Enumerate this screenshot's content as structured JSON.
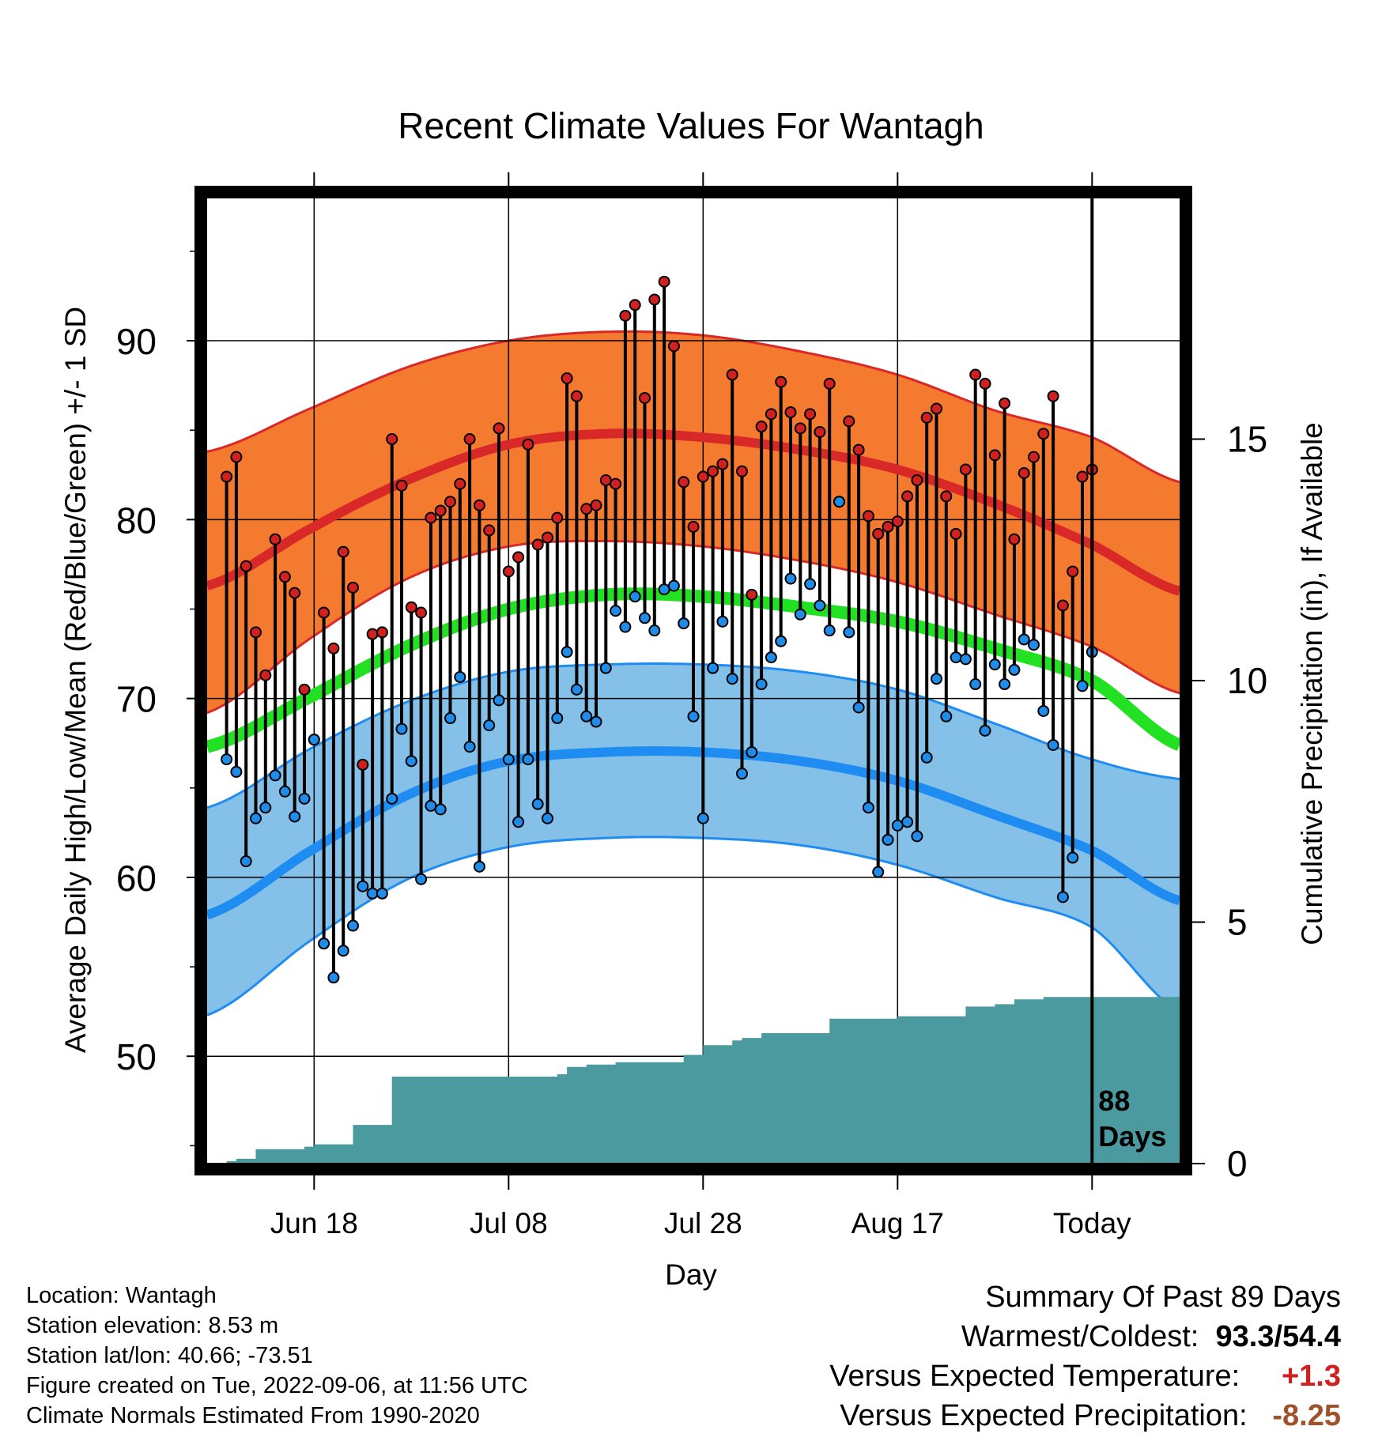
{
  "chart_data": {
    "type": "line",
    "title": "Recent Climate Values For Wantagh",
    "xlabel": "Day",
    "ylabel": "Average Daily High/Low/Mean (Red/Blue/Green) +/- 1 SD",
    "y2label": "Cumulative Precipitation (in), If Available",
    "ylim": [
      44,
      98
    ],
    "y_ticks": [
      50,
      60,
      70,
      80,
      90
    ],
    "y2lim": [
      0,
      20
    ],
    "y2_ticks": [
      0,
      5,
      10,
      15
    ],
    "x_range_days": [
      -91,
      9
    ],
    "x_ticks": [
      {
        "day": -80,
        "label": "Jun 18"
      },
      {
        "day": -60,
        "label": "Jul 08"
      },
      {
        "day": -40,
        "label": "Jul 28"
      },
      {
        "day": -20,
        "label": "Aug 17"
      },
      {
        "day": 0,
        "label": "Today"
      }
    ],
    "today_label": "88\nDays",
    "grid": true,
    "colors": {
      "high_band": "#f47a30",
      "high_line": "#d92828",
      "low_band": "#85c0e8",
      "low_line": "#1e8cf0",
      "mean_line": "#22e022",
      "precip_fill": "#4a9aa0",
      "high_dot": "#d02020",
      "low_dot": "#1e8ce8"
    },
    "normal_curves": {
      "days": [
        -91,
        -80,
        -70,
        -60,
        -50,
        -40,
        -30,
        -20,
        -10,
        0,
        9
      ],
      "high_mean": [
        76.3,
        79.6,
        82.3,
        84.2,
        84.8,
        84.6,
        83.9,
        82.8,
        80.9,
        78.6,
        76.0
      ],
      "high_upper": [
        83.8,
        86.3,
        88.6,
        90.0,
        90.5,
        90.3,
        89.4,
        88.1,
        86.1,
        84.6,
        82.1
      ],
      "high_lower": [
        69.2,
        73.5,
        76.8,
        78.5,
        78.8,
        78.5,
        77.7,
        76.5,
        74.7,
        72.9,
        70.3
      ],
      "mean_line": [
        67.3,
        70.2,
        73.0,
        75.0,
        75.8,
        75.7,
        75.1,
        74.3,
        72.8,
        71.0,
        67.4
      ],
      "low_mean": [
        57.9,
        61.6,
        64.7,
        66.5,
        67.0,
        67.0,
        66.5,
        65.4,
        63.5,
        61.5,
        58.7
      ],
      "low_upper": [
        63.9,
        67.3,
        69.9,
        71.5,
        71.9,
        71.9,
        71.5,
        70.5,
        68.6,
        66.6,
        65.5
      ],
      "low_lower": [
        52.3,
        56.6,
        60.0,
        61.7,
        62.2,
        62.2,
        61.8,
        60.7,
        58.9,
        57.2,
        52.5
      ]
    },
    "daily_highs": [
      82.4,
      83.5,
      77.4,
      73.7,
      71.3,
      78.9,
      76.8,
      75.9,
      70.5,
      67.7,
      74.8,
      72.8,
      78.2,
      76.2,
      66.3,
      73.6,
      73.7,
      84.5,
      81.9,
      75.1,
      74.8,
      80.1,
      80.5,
      81.0,
      82.0,
      84.5,
      80.8,
      79.4,
      85.1,
      77.1,
      77.9,
      84.2,
      78.6,
      79.0,
      80.1,
      87.9,
      86.9,
      80.6,
      80.8,
      82.2,
      82.0,
      91.4,
      92.0,
      86.8,
      92.3,
      93.3,
      89.7,
      82.1,
      79.6,
      82.4,
      82.7,
      83.1,
      88.1,
      82.7,
      75.8,
      85.2,
      85.9,
      87.7,
      86.0,
      85.1,
      85.9,
      84.9,
      87.6,
      81.0,
      85.5,
      83.9,
      80.2,
      79.2,
      79.6,
      79.9,
      81.3,
      82.2,
      85.7,
      86.2,
      81.3,
      79.2,
      82.8,
      88.1,
      87.6,
      83.6,
      86.5,
      78.9,
      82.6,
      83.5,
      84.8,
      86.9,
      75.2,
      77.1,
      82.4,
      82.8
    ],
    "daily_lows": [
      66.6,
      65.9,
      60.9,
      63.3,
      63.9,
      65.7,
      64.8,
      63.4,
      64.4,
      67.7,
      56.3,
      54.4,
      55.9,
      57.3,
      59.5,
      59.1,
      59.1,
      64.4,
      68.3,
      66.5,
      59.9,
      64.0,
      63.8,
      68.9,
      71.2,
      67.3,
      60.6,
      68.5,
      69.9,
      66.6,
      63.1,
      66.6,
      64.1,
      63.3,
      68.9,
      72.6,
      70.5,
      69.0,
      68.7,
      71.7,
      74.9,
      74.0,
      75.7,
      74.5,
      73.8,
      76.1,
      76.3,
      74.2,
      69.0,
      63.3,
      71.7,
      74.3,
      71.1,
      65.8,
      67.0,
      70.8,
      72.3,
      73.2,
      76.7,
      74.7,
      76.4,
      75.2,
      73.8,
      81.0,
      73.7,
      69.5,
      63.9,
      60.3,
      62.1,
      62.9,
      63.1,
      62.3,
      66.7,
      71.1,
      69.0,
      72.3,
      72.2,
      70.8,
      68.2,
      71.9,
      70.8,
      71.6,
      73.3,
      73.0,
      69.3,
      67.4,
      58.9,
      61.1,
      70.7,
      72.6
    ],
    "cumulative_precip": {
      "days": [
        -90,
        -89,
        -88,
        -86,
        -84,
        -81,
        -80,
        -77,
        -76,
        -73,
        -72,
        -70,
        -55,
        -54,
        -52,
        -49,
        -44,
        -42,
        -40,
        -37,
        -36,
        -34,
        -27,
        -20,
        -15,
        -13,
        -10,
        -8,
        -5,
        0,
        9
      ],
      "values": [
        0.0,
        0.05,
        0.1,
        0.3,
        0.3,
        0.35,
        0.4,
        0.4,
        0.8,
        0.8,
        1.8,
        1.8,
        1.85,
        2.0,
        2.05,
        2.1,
        2.1,
        2.25,
        2.45,
        2.55,
        2.6,
        2.7,
        3.0,
        3.05,
        3.05,
        3.25,
        3.3,
        3.4,
        3.45,
        3.45,
        3.45
      ]
    }
  },
  "footer": {
    "location": "Location: Wantagh",
    "elevation": "Station elevation: 8.53 m",
    "latlon": "Station lat/lon: 40.66; -73.51",
    "created": "Figure created on Tue, 2022-09-06, at 11:56 UTC",
    "normals": "Climate Normals Estimated From 1990-2020"
  },
  "summary": {
    "heading": "Summary Of Past 89 Days",
    "warm_cold_label": "Warmest/Coldest:",
    "warmest": "93.3",
    "slash": "/",
    "coldest": "54.4",
    "temp_label": "Versus Expected Temperature:",
    "temp_value": "+1.3",
    "temp_color": "#d02020",
    "precip_label": "Versus Expected Precipitation:",
    "precip_value": "-8.25",
    "precip_color": "#a0522d"
  }
}
